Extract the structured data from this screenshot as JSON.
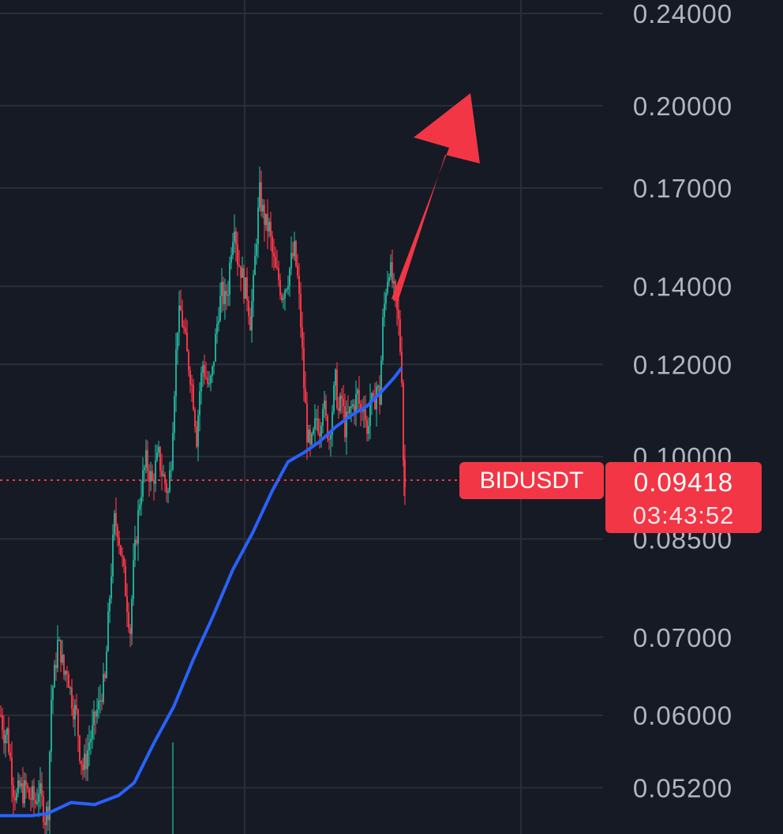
{
  "chart_data": {
    "type": "candlestick",
    "symbol": "BIDUSDT",
    "last_price": "0.09418",
    "countdown": "03:43:52",
    "y_ticks": [
      "0.24000",
      "0.20000",
      "0.17000",
      "0.14000",
      "0.12000",
      "0.10000",
      "0.08500",
      "0.07000",
      "0.06000",
      "0.05200"
    ],
    "y_scale": "log",
    "y_range": [
      0.0482,
      0.243
    ],
    "grid": true,
    "colors": {
      "up": "#22ab94",
      "down": "#f23645",
      "ma": "#2962ff",
      "background": "#161a25",
      "grid": "#2a2e39",
      "axis_text": "#b2b5be",
      "arrow": "#f23645"
    },
    "anchors": [
      [
        0,
        0.06
      ],
      [
        4,
        0.058
      ],
      [
        8,
        0.058
      ],
      [
        12,
        0.055
      ],
      [
        16,
        0.052
      ],
      [
        20,
        0.051
      ],
      [
        24,
        0.052
      ],
      [
        28,
        0.0515
      ],
      [
        32,
        0.052
      ],
      [
        36,
        0.051
      ],
      [
        40,
        0.051
      ],
      [
        44,
        0.0505
      ],
      [
        48,
        0.052
      ],
      [
        52,
        0.0505
      ],
      [
        56,
        0.049
      ],
      [
        60,
        0.05
      ],
      [
        64,
        0.062
      ],
      [
        68,
        0.065
      ],
      [
        72,
        0.069
      ],
      [
        76,
        0.068
      ],
      [
        80,
        0.065
      ],
      [
        84,
        0.066
      ],
      [
        88,
        0.063
      ],
      [
        92,
        0.061
      ],
      [
        96,
        0.06
      ],
      [
        100,
        0.056
      ],
      [
        104,
        0.054
      ],
      [
        108,
        0.055
      ],
      [
        112,
        0.057
      ],
      [
        116,
        0.058
      ],
      [
        120,
        0.06
      ],
      [
        124,
        0.061
      ],
      [
        128,
        0.063
      ],
      [
        132,
        0.064
      ],
      [
        136,
        0.072
      ],
      [
        140,
        0.08
      ],
      [
        144,
        0.088
      ],
      [
        148,
        0.087
      ],
      [
        152,
        0.083
      ],
      [
        156,
        0.079
      ],
      [
        160,
        0.075
      ],
      [
        164,
        0.071
      ],
      [
        168,
        0.08
      ],
      [
        172,
        0.086
      ],
      [
        176,
        0.092
      ],
      [
        180,
        0.096
      ],
      [
        184,
        0.099
      ],
      [
        188,
        0.097
      ],
      [
        192,
        0.095
      ],
      [
        196,
        0.098
      ],
      [
        200,
        0.1
      ],
      [
        204,
        0.097
      ],
      [
        208,
        0.095
      ],
      [
        212,
        0.093
      ],
      [
        216,
        0.1
      ],
      [
        220,
        0.115
      ],
      [
        224,
        0.13
      ],
      [
        228,
        0.133
      ],
      [
        232,
        0.128
      ],
      [
        236,
        0.122
      ],
      [
        240,
        0.118
      ],
      [
        244,
        0.112
      ],
      [
        248,
        0.104
      ],
      [
        252,
        0.114
      ],
      [
        256,
        0.12
      ],
      [
        260,
        0.117
      ],
      [
        264,
        0.114
      ],
      [
        268,
        0.118
      ],
      [
        272,
        0.126
      ],
      [
        276,
        0.134
      ],
      [
        280,
        0.138
      ],
      [
        284,
        0.136
      ],
      [
        288,
        0.14
      ],
      [
        292,
        0.152
      ],
      [
        296,
        0.16
      ],
      [
        300,
        0.148
      ],
      [
        304,
        0.145
      ],
      [
        308,
        0.14
      ],
      [
        312,
        0.138
      ],
      [
        316,
        0.131
      ],
      [
        320,
        0.14
      ],
      [
        324,
        0.155
      ],
      [
        328,
        0.168
      ],
      [
        332,
        0.162
      ],
      [
        336,
        0.158
      ],
      [
        340,
        0.157
      ],
      [
        344,
        0.149
      ],
      [
        348,
        0.144
      ],
      [
        352,
        0.142
      ],
      [
        356,
        0.138
      ],
      [
        360,
        0.14
      ],
      [
        364,
        0.143
      ],
      [
        368,
        0.147
      ],
      [
        372,
        0.15
      ],
      [
        376,
        0.142
      ],
      [
        380,
        0.13
      ],
      [
        384,
        0.115
      ],
      [
        388,
        0.105
      ],
      [
        392,
        0.101
      ],
      [
        396,
        0.104
      ],
      [
        400,
        0.108
      ],
      [
        404,
        0.106
      ],
      [
        408,
        0.112
      ],
      [
        412,
        0.107
      ],
      [
        416,
        0.104
      ],
      [
        420,
        0.11
      ],
      [
        424,
        0.116
      ],
      [
        428,
        0.109
      ],
      [
        432,
        0.112
      ],
      [
        436,
        0.106
      ],
      [
        440,
        0.108
      ],
      [
        444,
        0.11
      ],
      [
        448,
        0.111
      ],
      [
        452,
        0.113
      ],
      [
        456,
        0.109
      ],
      [
        460,
        0.112
      ],
      [
        464,
        0.104
      ],
      [
        468,
        0.112
      ],
      [
        472,
        0.11
      ],
      [
        476,
        0.115
      ],
      [
        480,
        0.112
      ],
      [
        484,
        0.13
      ],
      [
        488,
        0.14
      ],
      [
        492,
        0.146
      ],
      [
        496,
        0.141
      ],
      [
        500,
        0.135
      ],
      [
        504,
        0.13
      ],
      [
        508,
        0.118
      ],
      [
        510,
        0.1
      ],
      [
        512,
        0.094
      ]
    ],
    "ma_anchors": [
      [
        0,
        0.0492
      ],
      [
        40,
        0.0492
      ],
      [
        60,
        0.0494
      ],
      [
        90,
        0.0505
      ],
      [
        120,
        0.0503
      ],
      [
        150,
        0.0512
      ],
      [
        170,
        0.0525
      ],
      [
        195,
        0.0568
      ],
      [
        220,
        0.061
      ],
      [
        245,
        0.067
      ],
      [
        270,
        0.073
      ],
      [
        295,
        0.08
      ],
      [
        320,
        0.086
      ],
      [
        345,
        0.0935
      ],
      [
        365,
        0.099
      ],
      [
        385,
        0.1008
      ],
      [
        405,
        0.103
      ],
      [
        425,
        0.106
      ],
      [
        445,
        0.1085
      ],
      [
        465,
        0.1105
      ],
      [
        485,
        0.114
      ],
      [
        500,
        0.117
      ],
      [
        508,
        0.119
      ]
    ]
  }
}
